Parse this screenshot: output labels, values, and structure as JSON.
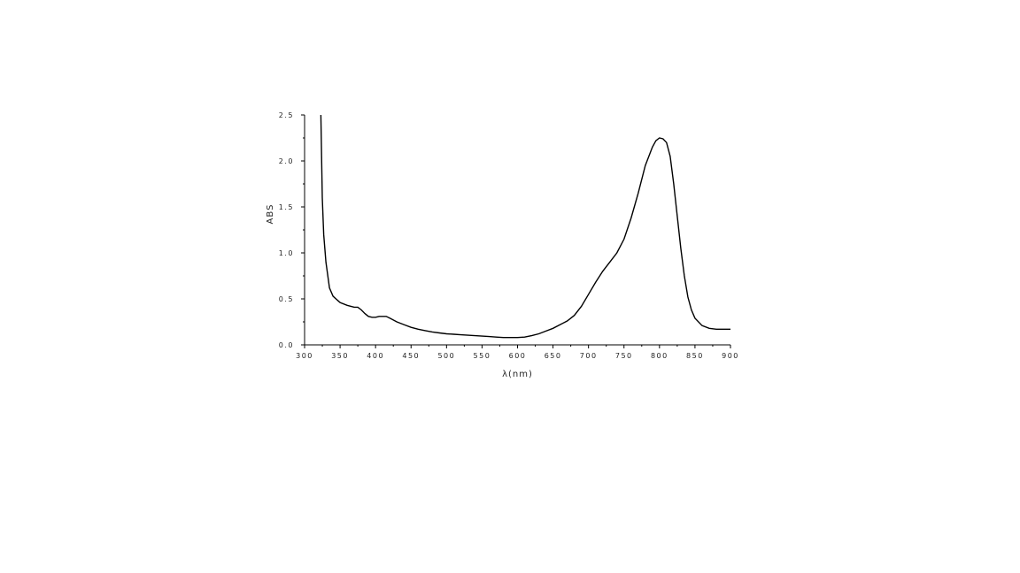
{
  "chart_data": {
    "type": "line",
    "xlabel": "λ(nm)",
    "ylabel": "ABS",
    "xlim": [
      300,
      900
    ],
    "ylim": [
      0.0,
      2.5
    ],
    "x_ticks": [
      300,
      350,
      400,
      450,
      500,
      550,
      600,
      650,
      700,
      750,
      800,
      850,
      900
    ],
    "x_tick_labels": [
      "300",
      "350",
      "400",
      "450",
      "500",
      "550",
      "600",
      "650",
      "700",
      "750",
      "800",
      "850",
      "900"
    ],
    "y_ticks": [
      0.0,
      0.5,
      1.0,
      1.5,
      2.0,
      2.5
    ],
    "y_tick_labels": [
      "0.0",
      "0.5",
      "1.0",
      "1.5",
      "2.0",
      "2.5"
    ],
    "grid": false,
    "line_color": "#000000",
    "series": [
      {
        "x": [
          323,
          324,
          325,
          327,
          330,
          335,
          340,
          350,
          360,
          370,
          375,
          380,
          385,
          390,
          395,
          400,
          405,
          410,
          415,
          420,
          430,
          440,
          450,
          460,
          470,
          480,
          490,
          500,
          510,
          520,
          530,
          540,
          550,
          560,
          570,
          580,
          590,
          600,
          610,
          620,
          630,
          640,
          650,
          660,
          670,
          680,
          690,
          700,
          710,
          720,
          730,
          740,
          750,
          760,
          770,
          780,
          790,
          795,
          800,
          805,
          810,
          815,
          820,
          825,
          830,
          835,
          840,
          845,
          850,
          860,
          870,
          880,
          890,
          900
        ],
        "y": [
          2.5,
          2.05,
          1.6,
          1.2,
          0.9,
          0.62,
          0.53,
          0.46,
          0.43,
          0.41,
          0.41,
          0.38,
          0.34,
          0.31,
          0.3,
          0.3,
          0.31,
          0.31,
          0.31,
          0.29,
          0.25,
          0.22,
          0.19,
          0.17,
          0.155,
          0.14,
          0.13,
          0.12,
          0.115,
          0.11,
          0.105,
          0.1,
          0.095,
          0.09,
          0.085,
          0.08,
          0.08,
          0.08,
          0.085,
          0.1,
          0.12,
          0.15,
          0.18,
          0.22,
          0.26,
          0.32,
          0.42,
          0.55,
          0.68,
          0.8,
          0.9,
          1.0,
          1.15,
          1.38,
          1.65,
          1.95,
          2.15,
          2.22,
          2.25,
          2.24,
          2.2,
          2.05,
          1.75,
          1.4,
          1.05,
          0.75,
          0.52,
          0.38,
          0.29,
          0.21,
          0.18,
          0.17,
          0.17,
          0.17
        ]
      }
    ]
  }
}
